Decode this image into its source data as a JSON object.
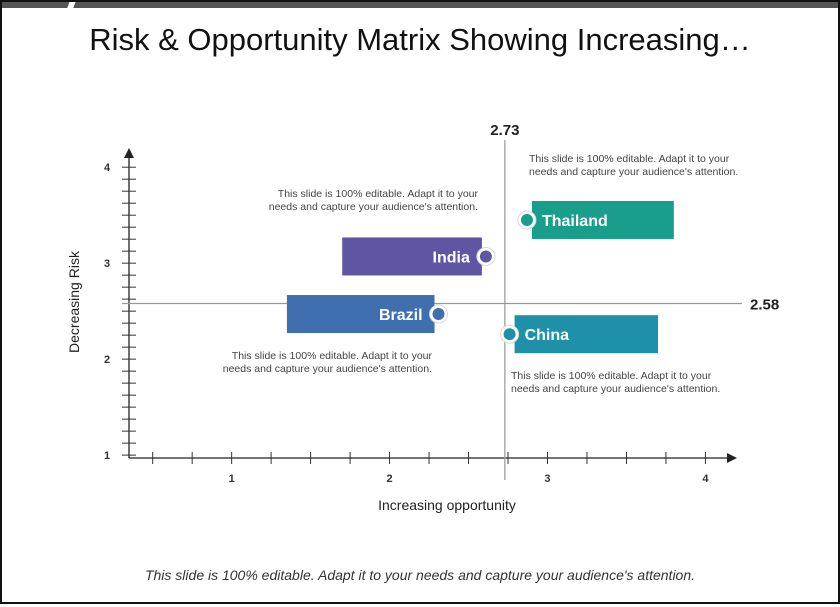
{
  "slide": {
    "title": "Risk & Opportunity Matrix Showing Increasing…",
    "footer": "This slide is 100% editable. Adapt it to your needs and capture your audience's attention."
  },
  "chart_data": {
    "type": "scatter",
    "title": "Risk & Opportunity Matrix Showing Increasing…",
    "xlabel": "Increasing opportunity",
    "ylabel": "Decreasing Risk",
    "xlim": [
      0.35,
      4.2
    ],
    "ylim": [
      0.97,
      4.2
    ],
    "x_ticks": [
      1,
      2,
      3,
      4
    ],
    "y_ticks": [
      1,
      2,
      3,
      4
    ],
    "reference_lines": {
      "x": 2.73,
      "y": 2.58
    },
    "points": [
      {
        "label": "India",
        "x": 2.61,
        "y": 3.07,
        "color": "#5f56a3",
        "bar_from": 1.7,
        "label_side": "left"
      },
      {
        "label": "Thailand",
        "x": 2.87,
        "y": 3.45,
        "color": "#1a9e8c",
        "bar_to": 3.8,
        "label_side": "right"
      },
      {
        "label": "Brazil",
        "x": 2.31,
        "y": 2.47,
        "color": "#3f6fae",
        "bar_from": 1.35,
        "label_side": "left"
      },
      {
        "label": "China",
        "x": 2.76,
        "y": 2.26,
        "color": "#1e90a8",
        "bar_to": 3.7,
        "label_side": "right"
      }
    ],
    "notes": [
      "This slide is 100% editable. Adapt it to your needs and capture your audience's attention.",
      "This slide is 100% editable. Adapt it to your needs and capture your audience's attention.",
      "This slide is 100% editable. Adapt it to your needs and capture your audience's attention.",
      "This slide is 100% editable. Adapt it to your needs and capture your audience's attention."
    ]
  }
}
